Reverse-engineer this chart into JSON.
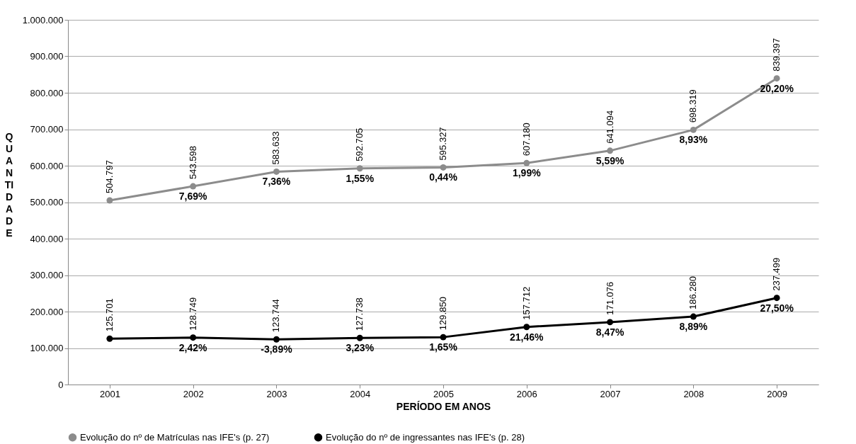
{
  "chart_data": {
    "type": "line",
    "xlabel": "PERÍODO EM ANOS",
    "ylabel": "QUANTIDADE",
    "categories": [
      "2001",
      "2002",
      "2003",
      "2004",
      "2005",
      "2006",
      "2007",
      "2008",
      "2009"
    ],
    "series": [
      {
        "name": "Evolução do nº de Matrículas nas IFE's (p. 27)",
        "color": "#8c8c8c",
        "values": [
          504797,
          543598,
          583633,
          592705,
          595327,
          607180,
          641094,
          698319,
          839397
        ],
        "value_labels": [
          "504.797",
          "543.598",
          "583.633",
          "592.705",
          "595.327",
          "607.180",
          "641.094",
          "698.319",
          "839.397"
        ]
      },
      {
        "name": "Evolução do nº de ingressantes nas IFE's (p. 28)",
        "color": "#000000",
        "values": [
          125701,
          128749,
          123744,
          127738,
          129850,
          157712,
          171076,
          186280,
          237499
        ],
        "value_labels": [
          "125.701",
          "128.749",
          "123.744",
          "127.738",
          "129.850",
          "157.712",
          "171.076",
          "186.280",
          "237.499"
        ]
      }
    ],
    "annotations": [
      {
        "text": "7,69%",
        "x": "2002",
        "y": 543598
      },
      {
        "text": "7,36%",
        "x": "2003",
        "y": 583633
      },
      {
        "text": "1,55%",
        "x": "2004",
        "y": 592705
      },
      {
        "text": "0,44%",
        "x": "2005",
        "y": 595327
      },
      {
        "text": "1,99%",
        "x": "2006",
        "y": 607180
      },
      {
        "text": "5,59%",
        "x": "2007",
        "y": 641094
      },
      {
        "text": "8,93%",
        "x": "2008",
        "y": 698319
      },
      {
        "text": "20,20%",
        "x": "2009",
        "y": 839397
      },
      {
        "text": "2,42%",
        "x": "2002",
        "y": 128749
      },
      {
        "text": "-3,89%",
        "x": "2003",
        "y": 123744
      },
      {
        "text": "3,23%",
        "x": "2004",
        "y": 127738
      },
      {
        "text": "1,65%",
        "x": "2005",
        "y": 129850
      },
      {
        "text": "21,46%",
        "x": "2006",
        "y": 157712
      },
      {
        "text": "8,47%",
        "x": "2007",
        "y": 171076
      },
      {
        "text": "8,89%",
        "x": "2008",
        "y": 186280
      },
      {
        "text": "27,50%",
        "x": "2009",
        "y": 237499
      }
    ],
    "ylim": [
      0,
      1000000
    ],
    "yticks": [
      0,
      {
        "value": 100000,
        "label": "100.000"
      },
      {
        "value": 200000,
        "label": "200.000"
      },
      {
        "value": 300000,
        "label": "300.000"
      },
      {
        "value": 400000,
        "label": "400.000"
      },
      {
        "value": 500000,
        "label": "500.000"
      },
      {
        "value": 600000,
        "label": "600.000"
      },
      {
        "value": 700000,
        "label": "700.000"
      },
      {
        "value": 800000,
        "label": "800.000"
      },
      {
        "value": 900000,
        "label": "900.000"
      },
      {
        "value": 1000000,
        "label": "1.000.000"
      }
    ],
    "grid": "y",
    "legend": "bottom",
    "marker": "circle",
    "line_style": "solid"
  }
}
